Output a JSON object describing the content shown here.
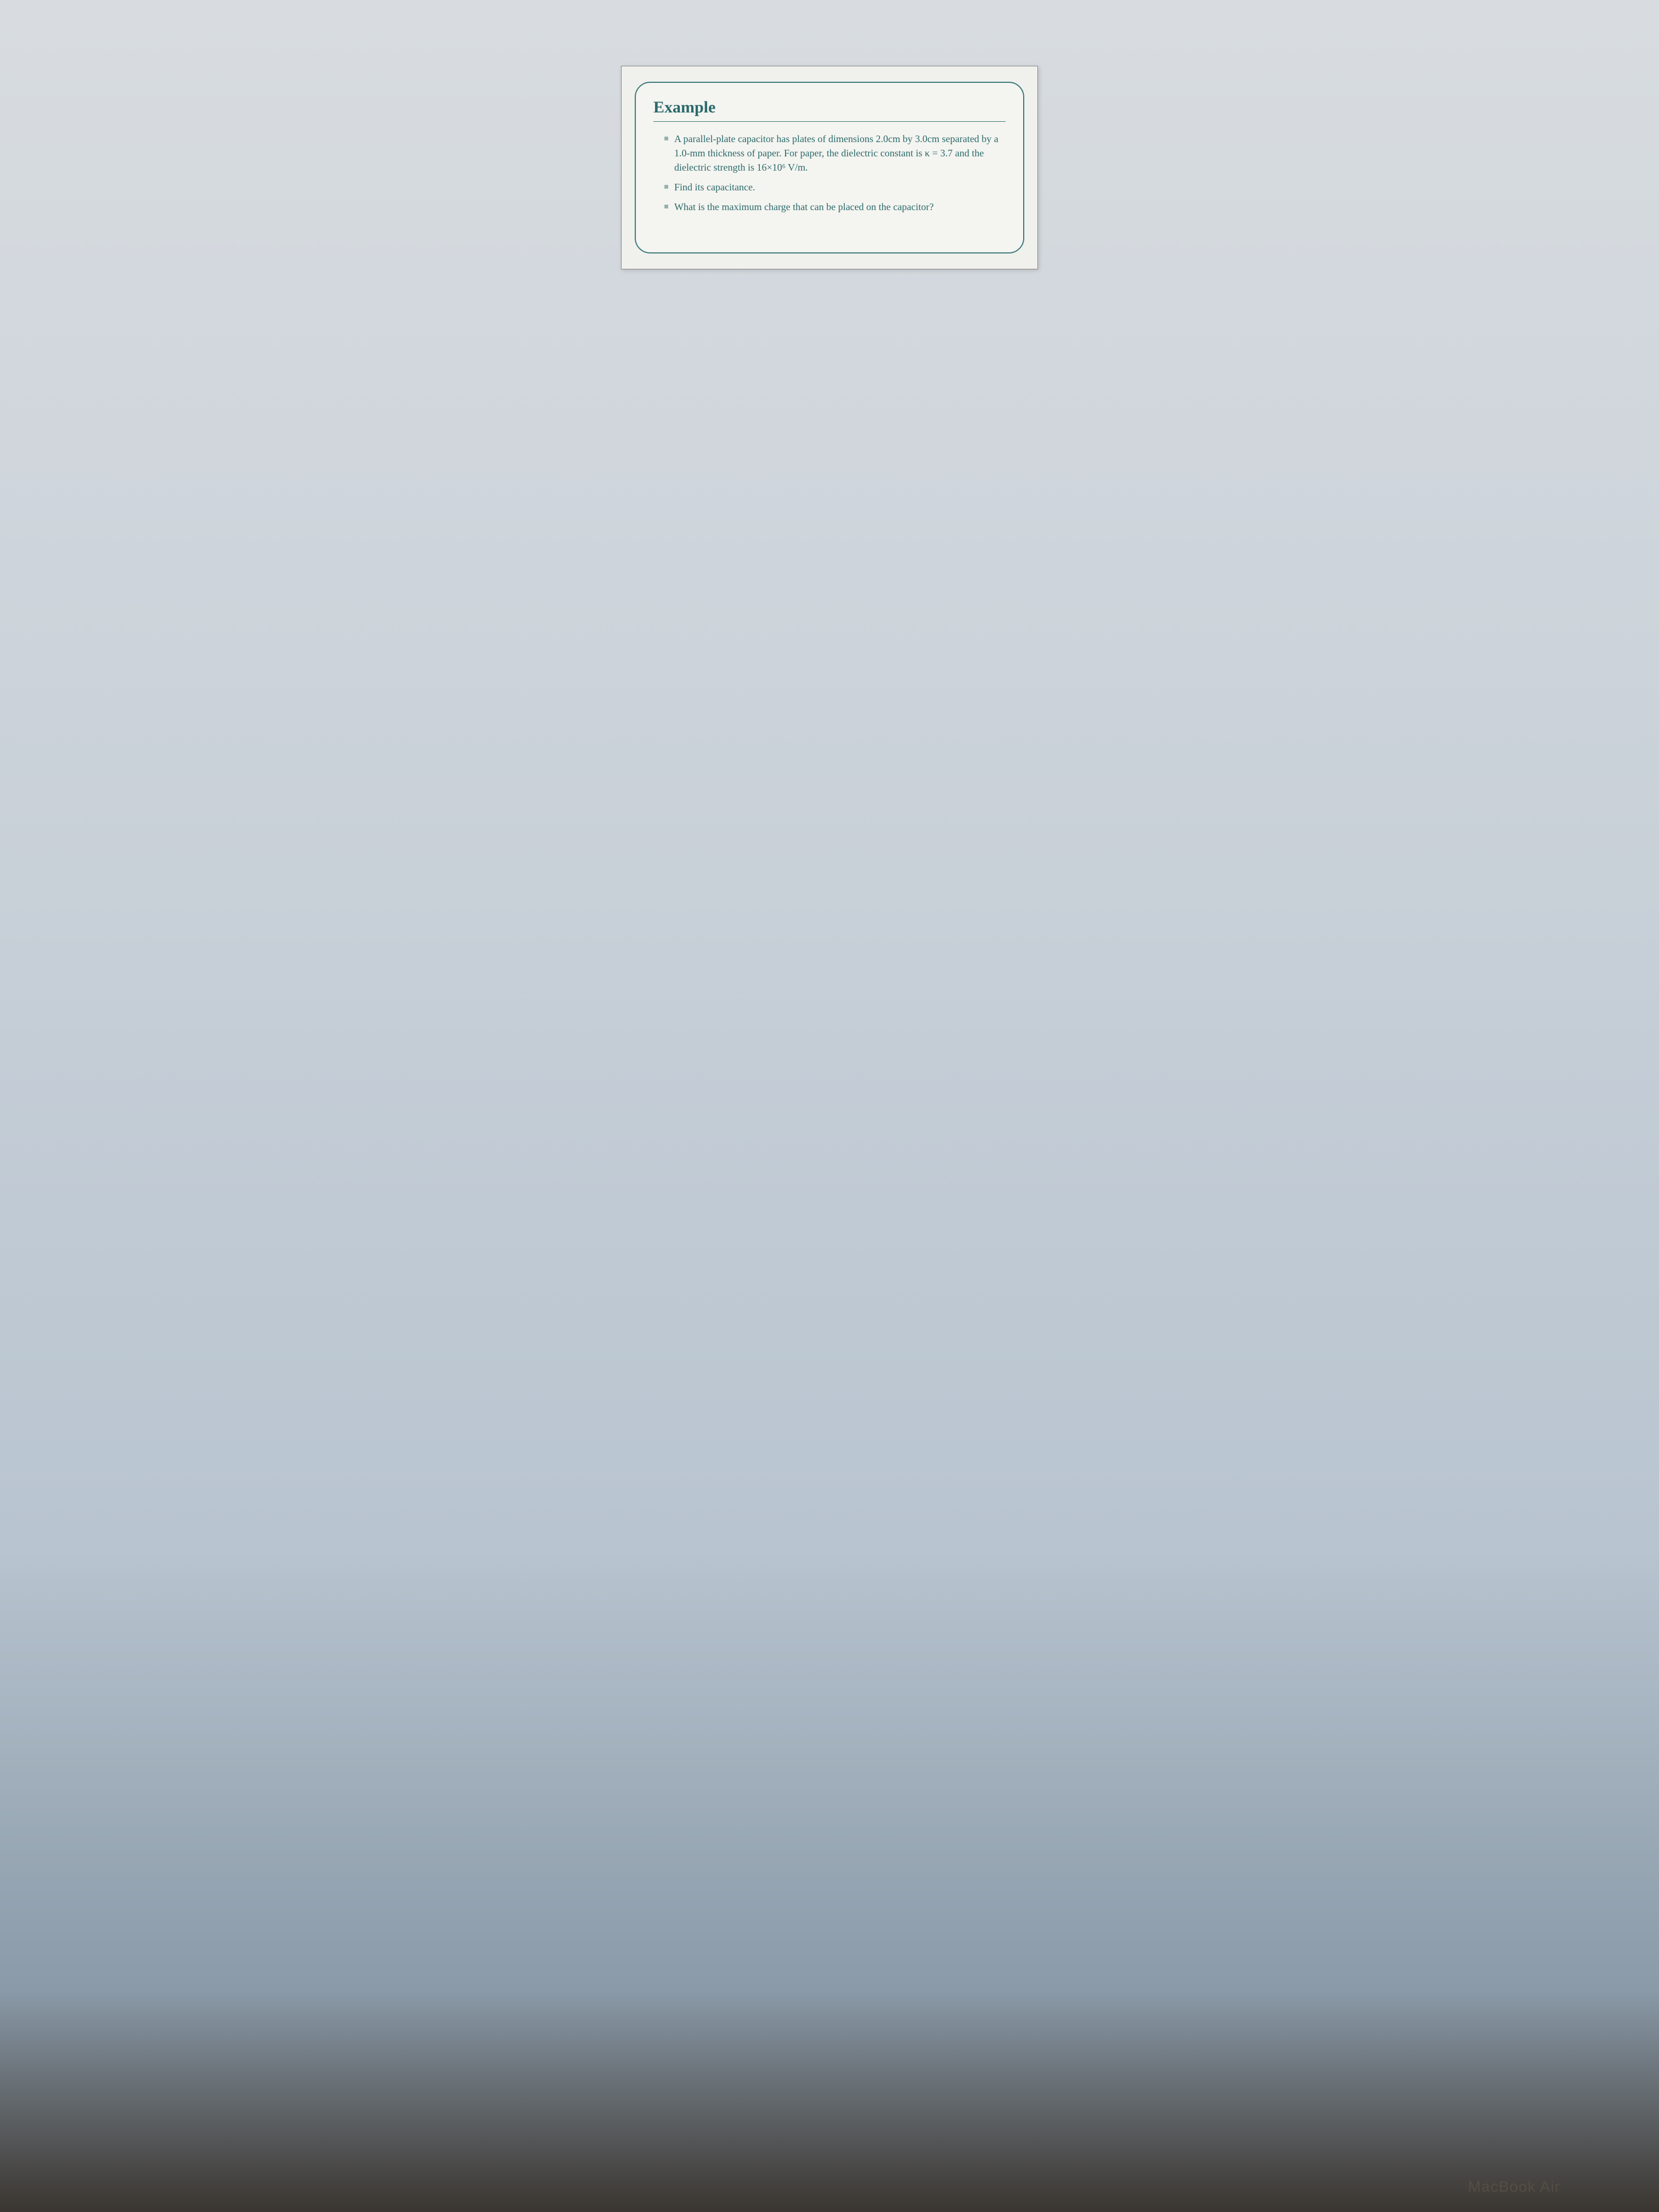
{
  "slide": {
    "title": "Example",
    "bullets": [
      "A parallel-plate capacitor has plates of dimensions 2.0cm by 3.0cm separated by a 1.0-mm thickness of paper. For paper, the dielectric constant is κ = 3.7 and the dielectric strength is 16×10⁶ V/m.",
      "Find its capacitance.",
      "What is the maximum charge that can be placed on the capacitor?"
    ]
  },
  "device": {
    "label": "MacBook Air"
  },
  "colors": {
    "title_color": "#2a6a6a",
    "border_color": "#3a7a7a",
    "text_color": "#2a6a6a",
    "bullet_color": "#9ab0b0",
    "slide_bg": "#f4f4f0",
    "outer_bg": "#f0f0ec"
  },
  "typography": {
    "title_fontsize": 30,
    "body_fontsize": 18,
    "font_family": "Georgia, serif"
  }
}
